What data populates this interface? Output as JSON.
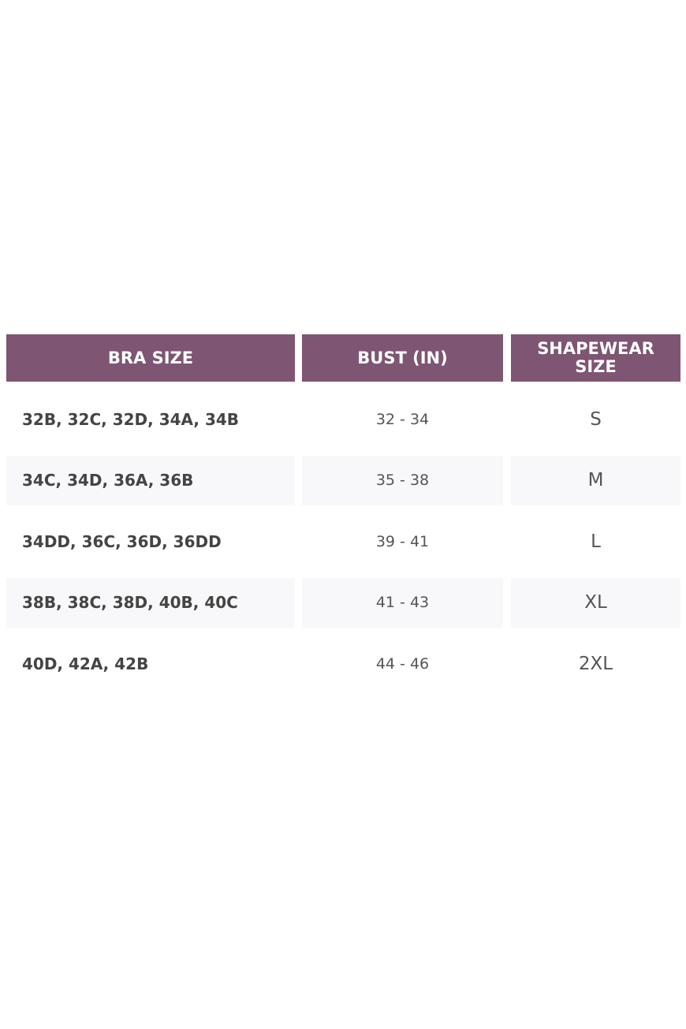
{
  "table": {
    "header": [
      "BRA SIZE",
      "BUST (IN)",
      "SHAPEWEAR SIZE"
    ],
    "rows": [
      [
        "32B, 32C, 32D, 34A, 34B",
        "32 - 34",
        "S"
      ],
      [
        "34C, 34D, 36A, 36B",
        "35 - 38",
        "M"
      ],
      [
        "34DD, 36C, 36D, 36DD",
        "39 - 41",
        "L"
      ],
      [
        "38B, 38C, 38D, 40B, 40C",
        "41 - 43",
        "XL"
      ],
      [
        "40D, 42A, 42B",
        "44 - 46",
        "2XL"
      ]
    ]
  }
}
